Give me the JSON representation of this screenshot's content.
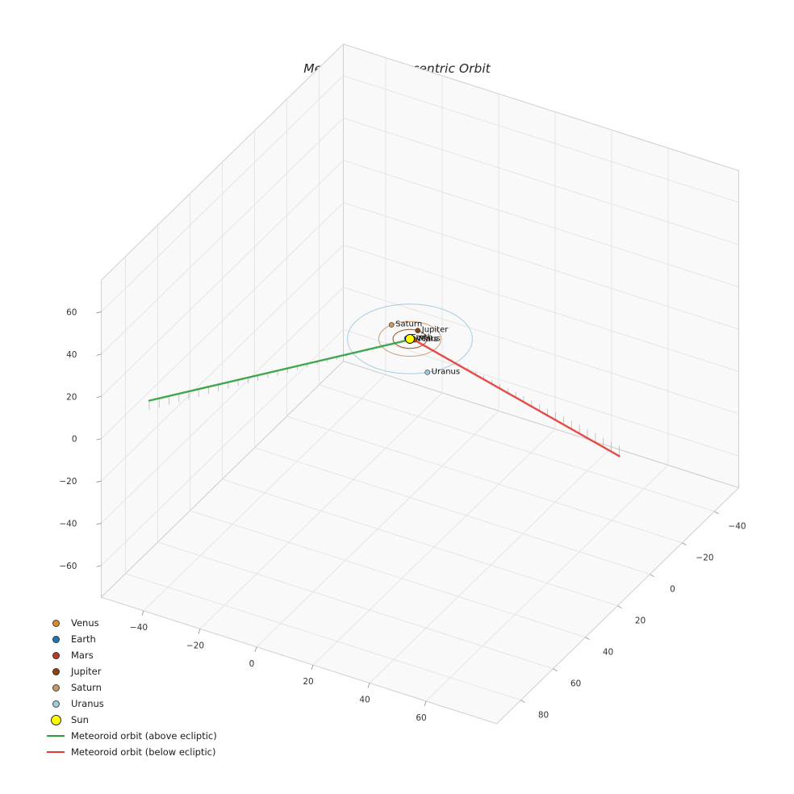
{
  "title": "Meteoroid's Heliocentric Orbit",
  "chart_data": {
    "type": "line",
    "subtype": "3d-trajectory-plot",
    "title": "Meteoroid's Heliocentric Orbit",
    "axes": {
      "x_ticks": [
        -40,
        -20,
        0,
        20,
        40,
        60
      ],
      "y_ticks": [
        -40,
        -20,
        0,
        20,
        40,
        60,
        80
      ],
      "z_ticks": [
        -60,
        -40,
        -20,
        0,
        20,
        40,
        60
      ],
      "xlim": [
        -55,
        85
      ],
      "ylim": [
        -55,
        95
      ],
      "zlim": [
        -75,
        75
      ],
      "grid": true,
      "pane_color": "#f9f9f9",
      "grid_color": "#e3e3e3",
      "edge_color": "#cfcfcf",
      "tick_label_color": "#333333"
    },
    "sun": {
      "label": "Sun",
      "color": "#ffff00",
      "edge_color": "#000000",
      "position": [
        0,
        0,
        0
      ]
    },
    "planets": [
      {
        "name": "Venus",
        "color": "#d78e2e",
        "orbit_radius_au": 0.72,
        "marker_angle_deg": 355
      },
      {
        "name": "Earth",
        "color": "#1f77b4",
        "orbit_radius_au": 1.0,
        "marker_angle_deg": 170
      },
      {
        "name": "Mars",
        "color": "#b73a2a",
        "orbit_radius_au": 1.52,
        "marker_angle_deg": 350
      },
      {
        "name": "Jupiter",
        "color": "#8b4513",
        "orbit_radius_au": 5.2,
        "marker_angle_deg": 268
      },
      {
        "name": "Saturn",
        "color": "#c8986b",
        "orbit_radius_au": 9.58,
        "marker_angle_deg": 204
      },
      {
        "name": "Uranus",
        "color": "#9fcbdd",
        "orbit_radius_au": 19.2,
        "marker_angle_deg": 44
      }
    ],
    "meteoroid": {
      "above": {
        "label": "Meteoroid orbit (above ecliptic)",
        "color": "#2e9e3c",
        "start": [
          -50,
          74,
          4.5
        ],
        "end": [
          -0.5,
          1.5,
          0.1
        ]
      },
      "below": {
        "label": "Meteoroid orbit (below ecliptic)",
        "color": "#e53935",
        "start": [
          0.5,
          -0.5,
          -0.1
        ],
        "end": [
          85,
          19,
          -5
        ]
      },
      "stem_count": 26,
      "stem_color": "#b0b0b0"
    },
    "legend": [
      {
        "label": "Venus",
        "marker": "dot",
        "color": "#d78e2e"
      },
      {
        "label": "Earth",
        "marker": "dot",
        "color": "#1f77b4"
      },
      {
        "label": "Mars",
        "marker": "dot",
        "color": "#b73a2a"
      },
      {
        "label": "Jupiter",
        "marker": "dot",
        "color": "#8b4513"
      },
      {
        "label": "Saturn",
        "marker": "dot",
        "color": "#c8986b"
      },
      {
        "label": "Uranus",
        "marker": "dot",
        "color": "#9fcbdd"
      },
      {
        "label": "Sun",
        "marker": "dot-large",
        "color": "#ffff00"
      },
      {
        "label": "Meteoroid orbit (above ecliptic)",
        "marker": "line",
        "color": "#2e9e3c"
      },
      {
        "label": "Meteoroid orbit (below ecliptic)",
        "marker": "line",
        "color": "#e53935"
      }
    ]
  }
}
